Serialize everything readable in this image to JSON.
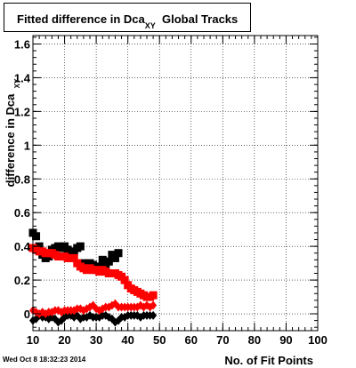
{
  "title": {
    "main": "Fitted difference in Dca",
    "sub": "XY",
    "rest": "Global Tracks"
  },
  "footer": {
    "datestamp": "Wed Oct  8 18:32:23 2014"
  },
  "chart_data": {
    "type": "scatter",
    "xlabel": "No. of Fit Points",
    "ylabel": "difference in Dca",
    "ylabel_sub": "XY",
    "xlim": [
      10,
      100
    ],
    "ylim": [
      -0.1,
      1.65
    ],
    "x_ticks": [
      10,
      20,
      30,
      40,
      50,
      60,
      70,
      80,
      90,
      100
    ],
    "y_ticks": [
      0,
      0.2,
      0.4,
      0.6,
      0.8,
      1,
      1.2,
      1.4,
      1.6
    ],
    "grid": true,
    "series": [
      {
        "color": "#000000",
        "marker": "square",
        "x": [
          10,
          11,
          12,
          13,
          14,
          15,
          16,
          17,
          18,
          19,
          20,
          21,
          22,
          23,
          24,
          25,
          26,
          27,
          28,
          29,
          30,
          31,
          32,
          33,
          34,
          35,
          36,
          37
        ],
        "y": [
          0.48,
          0.46,
          0.4,
          0.35,
          0.33,
          0.34,
          0.38,
          0.39,
          0.4,
          0.39,
          0.4,
          0.38,
          0.35,
          0.37,
          0.39,
          0.4,
          0.3,
          0.27,
          0.3,
          0.29,
          0.27,
          0.28,
          0.32,
          0.28,
          0.31,
          0.35,
          0.33,
          0.36
        ]
      },
      {
        "color": "#ff0000",
        "marker": "square",
        "x": [
          10,
          11,
          12,
          13,
          14,
          15,
          16,
          17,
          18,
          19,
          20,
          21,
          22,
          23,
          24,
          25,
          26,
          27,
          28,
          29,
          30,
          31,
          32,
          33,
          34,
          35,
          36,
          37,
          38,
          39,
          40,
          41,
          42,
          43,
          44,
          45,
          46,
          47,
          48
        ],
        "y": [
          0.39,
          0.38,
          0.37,
          0.37,
          0.36,
          0.36,
          0.36,
          0.35,
          0.34,
          0.34,
          0.34,
          0.33,
          0.33,
          0.33,
          0.3,
          0.28,
          0.27,
          0.26,
          0.27,
          0.26,
          0.26,
          0.25,
          0.26,
          0.25,
          0.24,
          0.24,
          0.24,
          0.23,
          0.22,
          0.2,
          0.17,
          0.15,
          0.14,
          0.13,
          0.12,
          0.11,
          0.1,
          0.1,
          0.11
        ]
      },
      {
        "color": "#000000",
        "marker": "diamond",
        "x": [
          10,
          11,
          12,
          13,
          14,
          15,
          16,
          17,
          18,
          19,
          20,
          21,
          22,
          23,
          24,
          25,
          26,
          27,
          28,
          29,
          30,
          31,
          32,
          33,
          34,
          35,
          36,
          37,
          38,
          39,
          40,
          41,
          42,
          43,
          44,
          45,
          46,
          47,
          48
        ],
        "y": [
          -0.04,
          -0.03,
          -0.01,
          -0.02,
          -0.02,
          -0.03,
          -0.02,
          -0.03,
          -0.05,
          -0.04,
          -0.02,
          -0.01,
          -0.01,
          -0.02,
          -0.01,
          -0.03,
          -0.02,
          -0.02,
          -0.01,
          -0.02,
          -0.02,
          -0.02,
          -0.01,
          -0.01,
          -0.02,
          -0.03,
          -0.05,
          -0.04,
          -0.02,
          -0.02,
          -0.01,
          -0.01,
          -0.01,
          -0.01,
          -0.02,
          -0.01,
          -0.01,
          -0.01,
          -0.01
        ]
      },
      {
        "color": "#ff0000",
        "marker": "diamond",
        "x": [
          10,
          11,
          12,
          13,
          14,
          15,
          16,
          17,
          18,
          19,
          20,
          21,
          22,
          23,
          24,
          25,
          26,
          27,
          28,
          29,
          30,
          31,
          32,
          33,
          34,
          35,
          36,
          37,
          38,
          39,
          40,
          41,
          42,
          43,
          44,
          45,
          46,
          47,
          48
        ],
        "y": [
          0.02,
          0.01,
          0.0,
          0.01,
          0.0,
          0.01,
          0.01,
          0.02,
          0.02,
          0.01,
          0.02,
          0.02,
          0.02,
          0.02,
          0.03,
          0.03,
          0.02,
          0.03,
          0.04,
          0.05,
          0.03,
          0.02,
          0.03,
          0.04,
          0.04,
          0.05,
          0.06,
          0.04,
          0.04,
          0.04,
          0.04,
          0.04,
          0.04,
          0.04,
          0.05,
          0.04,
          0.05,
          0.04,
          0.05
        ]
      }
    ]
  }
}
